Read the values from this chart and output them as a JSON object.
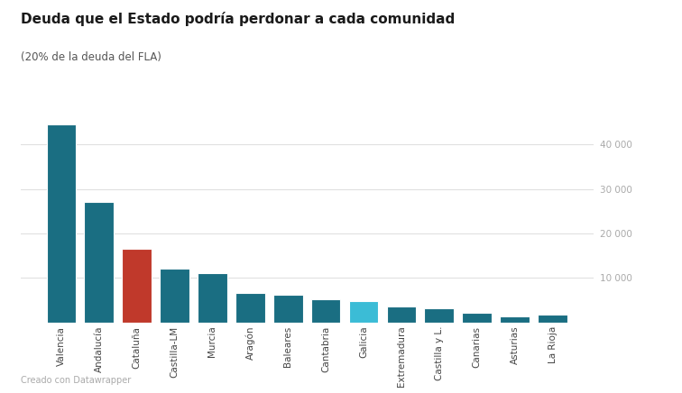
{
  "title": "Deuda que el Estado podría perdonar a cada comunidad",
  "subtitle": "(20% de la deuda del FLA)",
  "categories": [
    "Valencia",
    "Andalucía",
    "Cataluña",
    "Castilla-LM",
    "Murcia",
    "Aragón",
    "Baleares",
    "Cantabria",
    "Galicia",
    "Extremadura",
    "Castilla y L.",
    "Canarias",
    "Asturias",
    "La Rioja"
  ],
  "values": [
    44500,
    27000,
    16500,
    12000,
    11000,
    6500,
    6200,
    5200,
    4700,
    3600,
    3200,
    2100,
    1400,
    1700
  ],
  "colors": [
    "#1a6e82",
    "#1a6e82",
    "#c0392b",
    "#1a6e82",
    "#1a6e82",
    "#1a6e82",
    "#1a6e82",
    "#1a6e82",
    "#3bbcd6",
    "#1a6e82",
    "#1a6e82",
    "#1a6e82",
    "#1a6e82",
    "#1a6e82"
  ],
  "yticks": [
    10000,
    20000,
    30000,
    40000
  ],
  "ytick_labels": [
    "10 000",
    "20 000",
    "30 000",
    "40 000"
  ],
  "ylim": [
    0,
    46000
  ],
  "background_color": "#ffffff",
  "grid_color": "#e0e0e0",
  "title_fontsize": 11,
  "subtitle_fontsize": 8.5,
  "tick_label_fontsize": 7.5,
  "footer_text": "Creado con Datawrapper"
}
